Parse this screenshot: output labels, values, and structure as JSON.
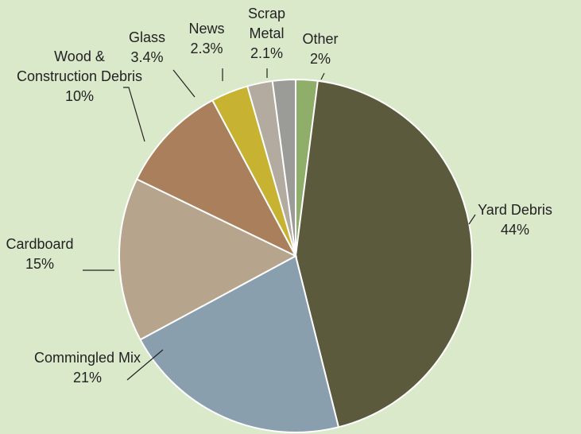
{
  "chart_data": {
    "type": "pie",
    "categories": [
      "Other",
      "Yard Debris",
      "Commingled Mix",
      "Cardboard",
      "Wood & Construction Debris",
      "Glass",
      "News",
      "Scrap Metal"
    ],
    "values": [
      2,
      44,
      21,
      15,
      10,
      3.4,
      2.3,
      2.1
    ],
    "value_labels": [
      "2%",
      "44%",
      "21%",
      "15%",
      "10%",
      "3.4%",
      "2.3%",
      "2.1%"
    ],
    "colors": [
      "#8fae6a",
      "#5b5a3c",
      "#8a9fae",
      "#b7a48c",
      "#a97f5c",
      "#c7b231",
      "#b3aaa0",
      "#9b9b97"
    ]
  }
}
